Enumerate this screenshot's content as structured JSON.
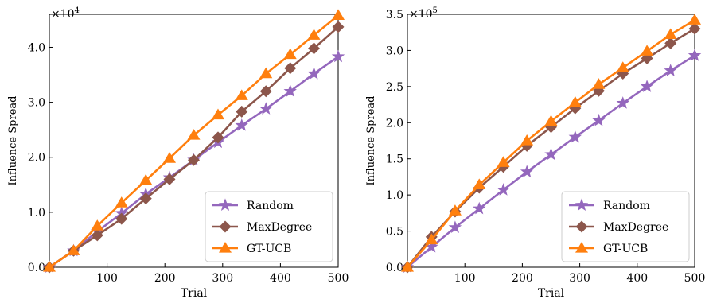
{
  "colors": {
    "random": "#9467bd",
    "maxdegree": "#8c564b",
    "gtucb": "#ff7f0e"
  },
  "chart_data": [
    {
      "type": "line",
      "xlabel": "Trial",
      "ylabel": "Influence Spread",
      "multiplier": "×10",
      "multiplier_exp": "4",
      "xlim": [
        0,
        500
      ],
      "ylim": [
        0,
        4.6
      ],
      "xticks": [
        "100",
        "200",
        "300",
        "400",
        "500"
      ],
      "yticks": [
        "0.0",
        "1.0",
        "2.0",
        "3.0",
        "4.0"
      ],
      "x": [
        0,
        42,
        83,
        125,
        167,
        208,
        250,
        292,
        333,
        375,
        417,
        458,
        500
      ],
      "series": [
        {
          "name": "Random",
          "marker": "star",
          "values": [
            0.0,
            0.3,
            0.65,
            0.98,
            1.33,
            1.63,
            1.95,
            2.27,
            2.58,
            2.88,
            3.2,
            3.52,
            3.83
          ]
        },
        {
          "name": "MaxDegree",
          "marker": "diamond",
          "values": [
            0.0,
            0.3,
            0.58,
            0.88,
            1.25,
            1.6,
            1.95,
            2.36,
            2.83,
            3.2,
            3.62,
            3.98,
            4.37
          ]
        },
        {
          "name": "GT-UCB",
          "marker": "triangle",
          "values": [
            0.0,
            0.3,
            0.75,
            1.17,
            1.58,
            1.98,
            2.4,
            2.77,
            3.12,
            3.52,
            3.87,
            4.22,
            4.58
          ]
        }
      ],
      "legend": "bottom-right",
      "grid": false
    },
    {
      "type": "line",
      "xlabel": "Trial",
      "ylabel": "Influence Spread",
      "multiplier": "×10",
      "multiplier_exp": "5",
      "xlim": [
        0,
        500
      ],
      "ylim": [
        0,
        3.5
      ],
      "xticks": [
        "100",
        "200",
        "300",
        "400",
        "500"
      ],
      "yticks": [
        "0.0",
        "0.5",
        "1.0",
        "1.5",
        "2.0",
        "2.5",
        "3.0",
        "3.5"
      ],
      "x": [
        0,
        42,
        83,
        125,
        167,
        208,
        250,
        292,
        333,
        375,
        417,
        458,
        500
      ],
      "series": [
        {
          "name": "Random",
          "marker": "star",
          "values": [
            0.0,
            0.28,
            0.55,
            0.81,
            1.07,
            1.32,
            1.56,
            1.8,
            2.03,
            2.27,
            2.5,
            2.72,
            2.93
          ]
        },
        {
          "name": "MaxDegree",
          "marker": "diamond",
          "values": [
            0.0,
            0.42,
            0.77,
            1.1,
            1.39,
            1.68,
            1.94,
            2.2,
            2.44,
            2.68,
            2.89,
            3.1,
            3.3
          ]
        },
        {
          "name": "GT-UCB",
          "marker": "triangle",
          "values": [
            0.0,
            0.38,
            0.78,
            1.14,
            1.45,
            1.75,
            2.02,
            2.28,
            2.53,
            2.76,
            2.99,
            3.22,
            3.42
          ]
        }
      ],
      "legend": "bottom-right",
      "grid": false
    }
  ]
}
